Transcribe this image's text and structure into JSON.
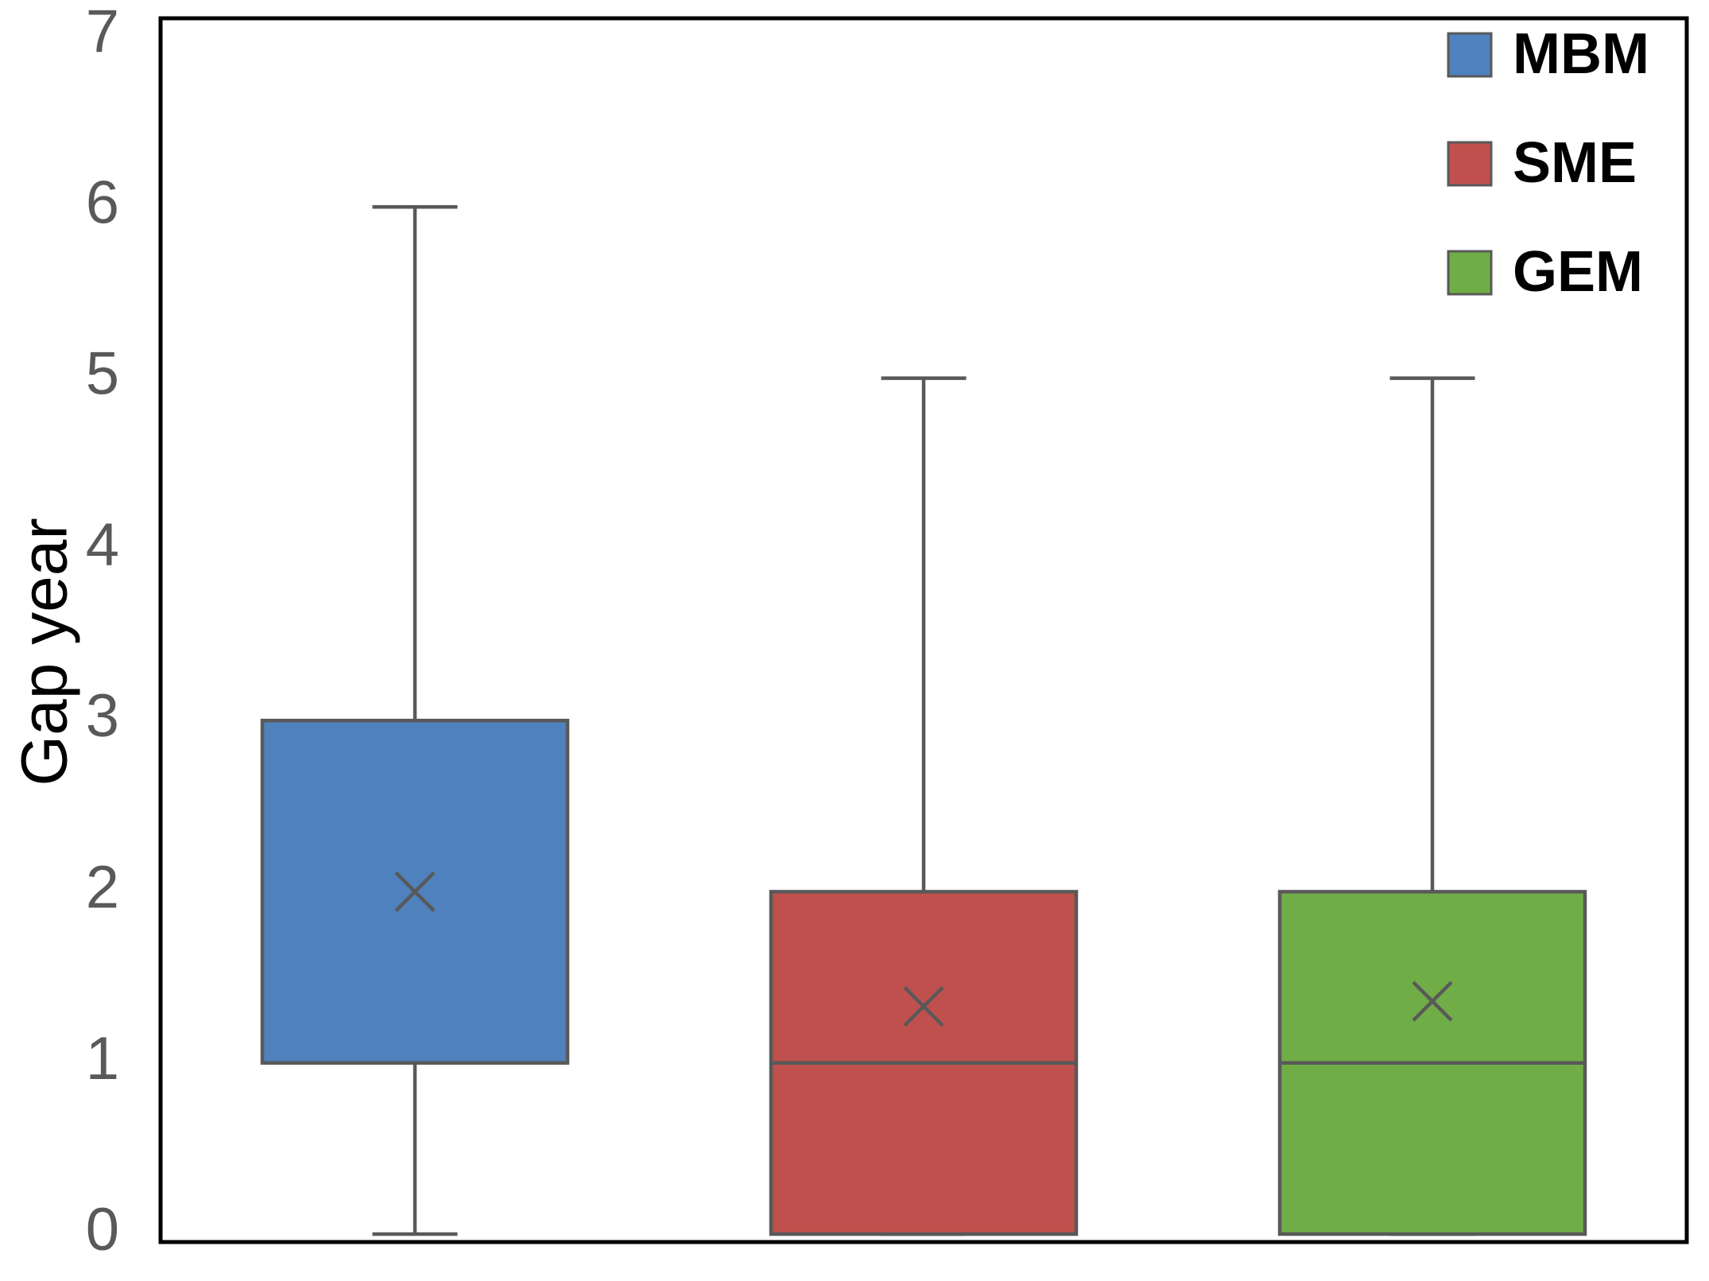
{
  "chart_data": {
    "type": "box",
    "y_label": "Gap year",
    "ylim": [
      0,
      7
    ],
    "yticks": [
      0,
      1,
      2,
      3,
      4,
      5,
      6,
      7
    ],
    "legend": "top-right",
    "series": [
      {
        "name": "MBM",
        "color": "#4f81bd",
        "min": 0,
        "q1": 1,
        "median": 1,
        "q3": 3,
        "max": 6,
        "mean": 2
      },
      {
        "name": "SME",
        "color": "#c0504d",
        "min": 0,
        "q1": 0,
        "median": 1,
        "q3": 2,
        "max": 5,
        "mean": 1.33
      },
      {
        "name": "GEM",
        "color": "#70ad47",
        "min": 0,
        "q1": 0,
        "median": 1,
        "q3": 2,
        "max": 5,
        "mean": 1.36
      }
    ]
  }
}
